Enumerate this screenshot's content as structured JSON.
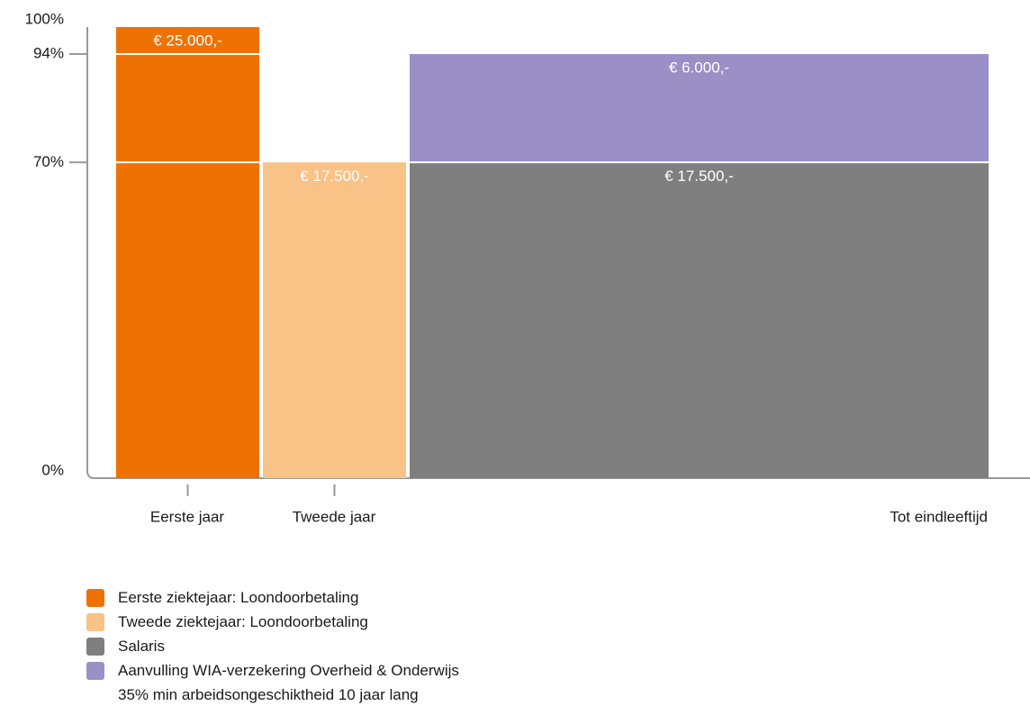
{
  "chart_data": {
    "type": "bar",
    "ylim": [
      0,
      100
    ],
    "yticks": [
      "100%",
      "94%",
      "70%",
      "0%"
    ],
    "ytick_values": [
      100,
      94,
      70,
      0
    ],
    "categories": [
      "Eerste jaar",
      "Tweede jaar",
      "Tot eindleeftijd"
    ],
    "bars": [
      {
        "category": "Eerste jaar",
        "segments": [
          {
            "series": "Eerste ziektejaar: Loondoorbetaling",
            "from": 0,
            "to": 100,
            "label": "€ 25.000,-"
          }
        ]
      },
      {
        "category": "Tweede jaar",
        "segments": [
          {
            "series": "Tweede ziektejaar: Loondoorbetaling",
            "from": 0,
            "to": 70,
            "label": "€ 17.500,-"
          }
        ]
      },
      {
        "category": "Tot eindleeftijd",
        "segments": [
          {
            "series": "Salaris",
            "from": 0,
            "to": 70,
            "label": "€ 17.500,-"
          },
          {
            "series": "Aanvulling WIA-verzekering Overheid & Onderwijs",
            "from": 70,
            "to": 94,
            "label": "€ 6.000,-"
          }
        ]
      }
    ],
    "reference_lines": [
      94,
      70
    ],
    "legend": [
      {
        "name": "Eerste ziektejaar: Loondoorbetaling",
        "color": "#ee7203"
      },
      {
        "name": "Tweede ziektejaar: Loondoorbetaling",
        "color": "#f9c286"
      },
      {
        "name": "Salaris",
        "color": "#7f7f7f"
      },
      {
        "name": "Aanvulling WIA-verzekering Overheid & Onderwijs",
        "color": "#9b90c5"
      }
    ],
    "legend_note": "35% min arbeidsongeschiktheid 10 jaar lang",
    "colors": {
      "axis": "#999999",
      "label_light": "#ffffff",
      "tick_text": "#1a1a1a"
    }
  }
}
